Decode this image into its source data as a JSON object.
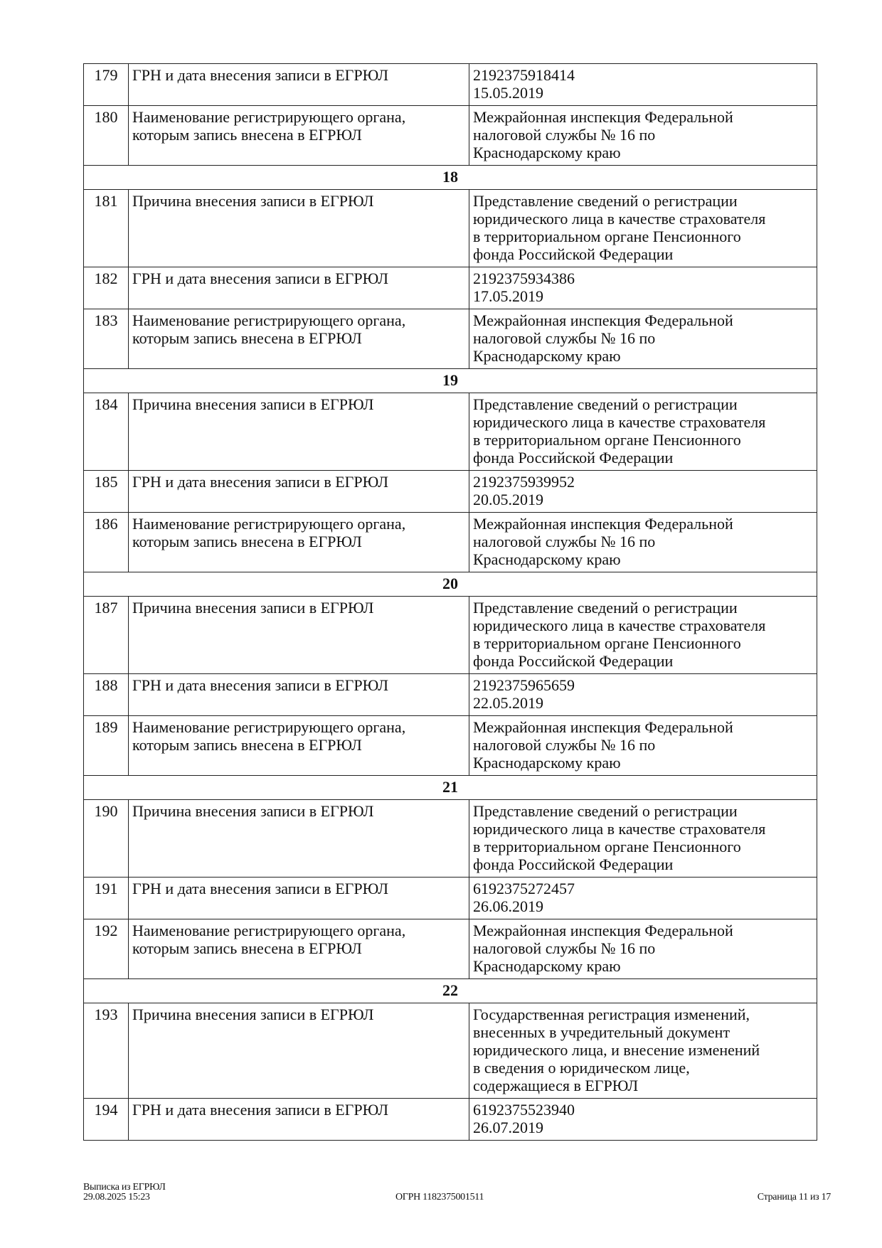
{
  "table": {
    "rows": [
      {
        "type": "row",
        "num": "179",
        "name": [
          "ГРН и дата внесения записи в ЕГРЮЛ"
        ],
        "value": [
          "2192375918414",
          "15.05.2019"
        ]
      },
      {
        "type": "row",
        "num": "180",
        "name": [
          "Наименование регистрирующего органа,",
          "которым запись внесена в ЕГРЮЛ"
        ],
        "value": [
          "Межрайонная инспекция Федеральной",
          "налоговой службы № 16 по",
          "Краснодарскому краю"
        ]
      },
      {
        "type": "section",
        "label": "18"
      },
      {
        "type": "row",
        "num": "181",
        "name": [
          "Причина внесения записи в ЕГРЮЛ"
        ],
        "value": [
          "Представление сведений о регистрации",
          "юридического лица в качестве страхователя",
          "в территориальном органе Пенсионного",
          "фонда Российской Федерации"
        ]
      },
      {
        "type": "row",
        "num": "182",
        "name": [
          "ГРН и дата внесения записи в ЕГРЮЛ"
        ],
        "value": [
          "2192375934386",
          "17.05.2019"
        ]
      },
      {
        "type": "row",
        "num": "183",
        "name": [
          "Наименование регистрирующего органа,",
          "которым запись внесена в ЕГРЮЛ"
        ],
        "value": [
          "Межрайонная инспекция Федеральной",
          "налоговой службы № 16 по",
          "Краснодарскому краю"
        ]
      },
      {
        "type": "section",
        "label": "19"
      },
      {
        "type": "row",
        "num": "184",
        "name": [
          "Причина внесения записи в ЕГРЮЛ"
        ],
        "value": [
          "Представление сведений о регистрации",
          "юридического лица в качестве страхователя",
          "в территориальном органе Пенсионного",
          "фонда Российской Федерации"
        ]
      },
      {
        "type": "row",
        "num": "185",
        "name": [
          "ГРН и дата внесения записи в ЕГРЮЛ"
        ],
        "value": [
          "2192375939952",
          "20.05.2019"
        ]
      },
      {
        "type": "row",
        "num": "186",
        "name": [
          "Наименование регистрирующего органа,",
          "которым запись внесена в ЕГРЮЛ"
        ],
        "value": [
          "Межрайонная инспекция Федеральной",
          "налоговой службы № 16 по",
          "Краснодарскому краю"
        ]
      },
      {
        "type": "section",
        "label": "20"
      },
      {
        "type": "row",
        "num": "187",
        "name": [
          "Причина внесения записи в ЕГРЮЛ"
        ],
        "value": [
          "Представление сведений о регистрации",
          "юридического лица в качестве страхователя",
          "в территориальном органе Пенсионного",
          "фонда Российской Федерации"
        ]
      },
      {
        "type": "row",
        "num": "188",
        "name": [
          "ГРН и дата внесения записи в ЕГРЮЛ"
        ],
        "value": [
          "2192375965659",
          "22.05.2019"
        ]
      },
      {
        "type": "row",
        "num": "189",
        "name": [
          "Наименование регистрирующего органа,",
          "которым запись внесена в ЕГРЮЛ"
        ],
        "value": [
          "Межрайонная инспекция Федеральной",
          "налоговой службы № 16 по",
          "Краснодарскому краю"
        ]
      },
      {
        "type": "section",
        "label": "21"
      },
      {
        "type": "row",
        "num": "190",
        "name": [
          "Причина внесения записи в ЕГРЮЛ"
        ],
        "value": [
          "Представление сведений о регистрации",
          "юридического лица в качестве страхователя",
          "в территориальном органе Пенсионного",
          "фонда Российской Федерации"
        ]
      },
      {
        "type": "row",
        "num": "191",
        "name": [
          "ГРН и дата внесения записи в ЕГРЮЛ"
        ],
        "value": [
          "6192375272457",
          "26.06.2019"
        ]
      },
      {
        "type": "row",
        "num": "192",
        "name": [
          "Наименование регистрирующего органа,",
          "которым запись внесена в ЕГРЮЛ"
        ],
        "value": [
          "Межрайонная инспекция Федеральной",
          "налоговой службы № 16 по",
          "Краснодарскому краю"
        ]
      },
      {
        "type": "section",
        "label": "22"
      },
      {
        "type": "row",
        "num": "193",
        "name": [
          "Причина внесения записи в ЕГРЮЛ"
        ],
        "value": [
          "Государственная регистрация изменений,",
          "внесенных в учредительный документ",
          "юридического лица, и внесение изменений",
          "в сведения о юридическом лице,",
          "содержащиеся в ЕГРЮЛ"
        ]
      },
      {
        "type": "row",
        "num": "194",
        "name": [
          "ГРН и дата внесения записи в ЕГРЮЛ"
        ],
        "value": [
          "6192375523940",
          "26.07.2019"
        ]
      }
    ]
  },
  "footer": {
    "doc_title": "Выписка из ЕГРЮЛ",
    "datetime": "29.08.2025 15:23",
    "ogrn": "ОГРН 1182375001511",
    "page": "Страница 11 из 17"
  }
}
